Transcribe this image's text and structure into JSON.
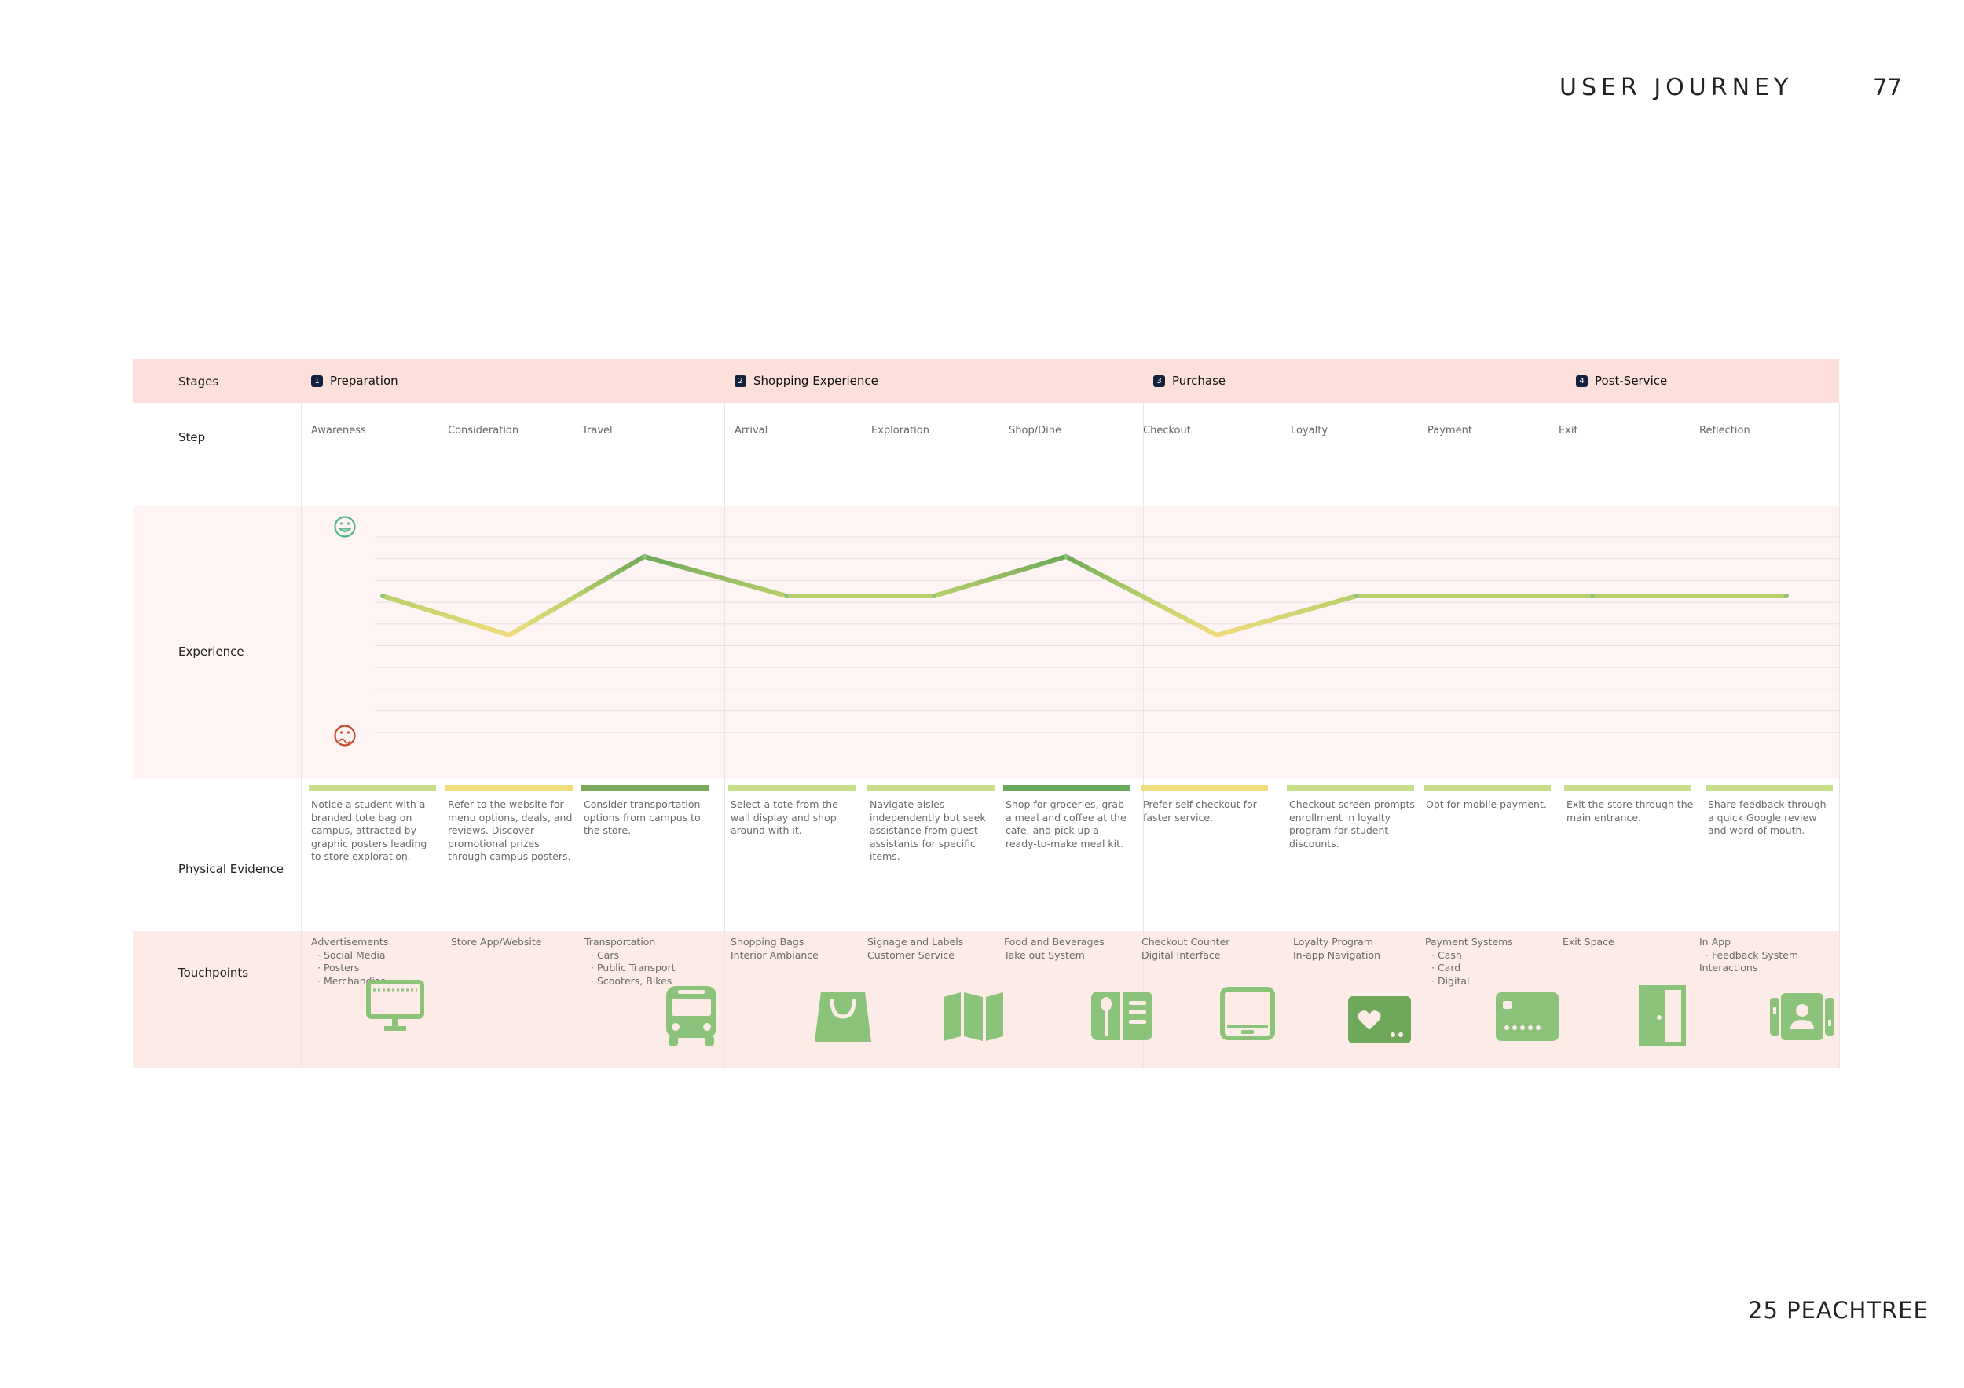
{
  "header": {
    "title": "USER JOURNEY",
    "page_number": "77"
  },
  "footer": {
    "brand": "25 PEACHTREE"
  },
  "rows": {
    "stages": "Stages",
    "step": "Step",
    "experience": "Experience",
    "physical_evidence": "Physical Evidence",
    "touchpoints": "Touchpoints"
  },
  "stages": [
    {
      "num": "1",
      "label": "Preparation"
    },
    {
      "num": "2",
      "label": "Shopping Experience"
    },
    {
      "num": "3",
      "label": "Purchase"
    },
    {
      "num": "4",
      "label": "Post-Service"
    }
  ],
  "steps": [
    "Awareness",
    "Consideration",
    "Travel",
    "Arrival",
    "Exploration",
    "Shop/Dine",
    "Checkout",
    "Loyalty",
    "Payment",
    "Exit",
    "Reflection"
  ],
  "experience": {
    "scale_min": 0,
    "scale_max": 10,
    "positive_icon": "happy-face-icon",
    "negative_icon": "sad-face-icon",
    "values": [
      7,
      5,
      9,
      7,
      7,
      9,
      5,
      7,
      7,
      7,
      7
    ]
  },
  "evidence_colors": [
    "#c9de8a",
    "#f0dc7c",
    "#7daa5a",
    "#c9de8a",
    "#c9de8a",
    "#6aaa5a",
    "#f0dc7c",
    "#c9de8a",
    "#c9de8a",
    "#c9de8a",
    "#c9de8a"
  ],
  "evidence": [
    "Notice a student with a branded tote bag on campus, attracted by graphic posters leading to store exploration.",
    "Refer to the website for menu options, deals, and reviews. Discover promotional prizes through campus posters.",
    "Consider transportation options from campus to the store.",
    "Select a tote from the wall display and shop around with it.",
    "Navigate aisles independently but seek assistance from guest assistants for specific items.",
    "Shop for groceries, grab a meal and coffee at the cafe, and pick up a ready-to-make meal kit.",
    "Prefer self-checkout for faster service.",
    "Checkout screen prompts enrollment in  loyalty program for student discounts.",
    "Opt for mobile payment.",
    "Exit the store through the main entrance.",
    "Share feedback through a quick Google review and word-of-mouth."
  ],
  "touchpoints": [
    {
      "lines": [
        "Advertisements"
      ],
      "subs": [
        "Social Media",
        "Posters",
        "Merchandise"
      ]
    },
    {
      "lines": [
        "Store App/Website"
      ],
      "subs": []
    },
    {
      "lines": [
        "Transportation"
      ],
      "subs": [
        "Cars",
        "Public Transport",
        "Scooters, Bikes"
      ]
    },
    {
      "lines": [
        "Shopping Bags",
        "Interior Ambiance"
      ],
      "subs": []
    },
    {
      "lines": [
        "Signage and Labels",
        "Customer Service"
      ],
      "subs": []
    },
    {
      "lines": [
        "Food and Beverages",
        "Take out System"
      ],
      "subs": []
    },
    {
      "lines": [
        "Checkout Counter",
        "Digital Interface"
      ],
      "subs": []
    },
    {
      "lines": [
        "Loyalty Program",
        "In-app Navigation"
      ],
      "subs": []
    },
    {
      "lines": [
        "Payment Systems"
      ],
      "subs": [
        "Cash",
        "Card",
        "Digital"
      ]
    },
    {
      "lines": [
        "Exit Space"
      ],
      "subs": []
    },
    {
      "lines": [
        "In App"
      ],
      "subs": [
        "Feedback System"
      ],
      "after": [
        "Interactions"
      ]
    }
  ],
  "touchpoint_icons": [
    "billboard-icon",
    "bus-icon",
    "shopping-bag-icon",
    "map-icon",
    "menu-icon",
    "tablet-icon",
    "loyalty-card-icon",
    "credit-card-icon",
    "door-icon",
    "contacts-icon"
  ],
  "colors": {
    "stage_band": "#fde0db",
    "experience_band": "#fdf4f3",
    "touch_band": "#fdebe7",
    "icon_green": "#8cc37a",
    "line_green": "#7db65f",
    "line_yellow": "#ecdd82"
  }
}
